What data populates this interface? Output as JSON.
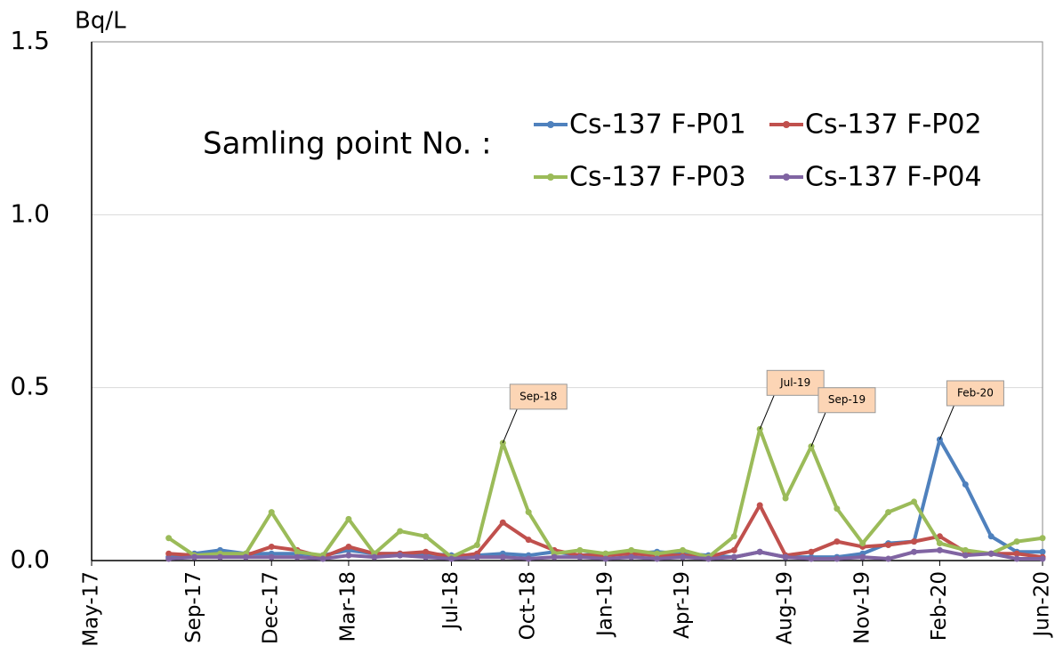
{
  "chart_data": {
    "type": "line",
    "y_label": "Bq/L",
    "legend_title": "Samling point No. :",
    "x": [
      "Aug-17",
      "Sep-17",
      "Oct-17",
      "Nov-17",
      "Dec-17",
      "Jan-18",
      "Feb-18",
      "Mar-18",
      "Apr-18",
      "May-18",
      "Jun-18",
      "Jul-18",
      "Aug-18",
      "Sep-18",
      "Oct-18",
      "Nov-18",
      "Dec-18",
      "Jan-19",
      "Feb-19",
      "Mar-19",
      "Apr-19",
      "May-19",
      "Jun-19",
      "Jul-19",
      "Aug-19",
      "Sep-19",
      "Oct-19",
      "Nov-19",
      "Dec-19",
      "Jan-20",
      "Feb-20",
      "Mar-20",
      "Apr-20",
      "May-20",
      "Jun-20"
    ],
    "series": [
      {
        "name": "Cs-137 F-P01",
        "color": "#4f81bd",
        "values": [
          0.01,
          0.02,
          0.03,
          0.02,
          0.02,
          0.02,
          0.015,
          0.03,
          0.02,
          0.02,
          0.02,
          0.015,
          0.015,
          0.02,
          0.015,
          0.025,
          0.015,
          0.02,
          0.02,
          0.025,
          0.02,
          0.015,
          0.01,
          0.025,
          0.01,
          0.01,
          0.01,
          0.02,
          0.05,
          0.055,
          0.35,
          0.22,
          0.07,
          0.025,
          0.025
        ]
      },
      {
        "name": "Cs-137 F-P02",
        "color": "#c0504d",
        "values": [
          0.02,
          0.015,
          0.015,
          0.015,
          0.04,
          0.03,
          0.01,
          0.04,
          0.02,
          0.02,
          0.025,
          0.01,
          0.02,
          0.11,
          0.06,
          0.03,
          0.015,
          0.015,
          0.02,
          0.015,
          0.015,
          0.01,
          0.03,
          0.16,
          0.015,
          0.025,
          0.055,
          0.04,
          0.045,
          0.055,
          0.07,
          0.025,
          0.02,
          0.02,
          0.01
        ]
      },
      {
        "name": "Cs-137 F-P03",
        "color": "#9bbb59",
        "values": [
          0.065,
          0.015,
          0.02,
          0.02,
          0.14,
          0.025,
          0.015,
          0.12,
          0.02,
          0.085,
          0.07,
          0.01,
          0.045,
          0.34,
          0.14,
          0.02,
          0.03,
          0.02,
          0.03,
          0.02,
          0.03,
          0.01,
          0.07,
          0.38,
          0.18,
          0.33,
          0.15,
          0.05,
          0.14,
          0.17,
          0.05,
          0.03,
          0.02,
          0.055,
          0.065
        ]
      },
      {
        "name": "Cs-137 F-P04",
        "color": "#8064a2",
        "values": [
          0.005,
          0.01,
          0.01,
          0.01,
          0.01,
          0.01,
          0.005,
          0.015,
          0.01,
          0.015,
          0.01,
          0.005,
          0.01,
          0.01,
          0.005,
          0.01,
          0.01,
          0.005,
          0.01,
          0.005,
          0.01,
          0.005,
          0.01,
          0.025,
          0.01,
          0.005,
          0.005,
          0.01,
          0.005,
          0.025,
          0.03,
          0.015,
          0.02,
          0.005,
          0.005
        ]
      }
    ],
    "annotations": [
      "Sep-18",
      "Jul-19",
      "Sep-19",
      "Feb-20"
    ],
    "xlim": [
      "May-17",
      "Jun-20"
    ],
    "xticks": [
      "May-17",
      "Sep-17",
      "Dec-17",
      "Mar-18",
      "Jul-18",
      "Oct-18",
      "Jan-19",
      "Apr-19",
      "Aug-19",
      "Nov-19",
      "Feb-20",
      "Jun-20"
    ],
    "ylim": [
      0,
      1.5
    ],
    "yticks": [
      {
        "value": 0,
        "label": "0.0"
      },
      {
        "value": 0.5,
        "label": "0.5"
      },
      {
        "value": 1,
        "label": "1.0"
      },
      1.5
    ],
    "grid": true
  }
}
